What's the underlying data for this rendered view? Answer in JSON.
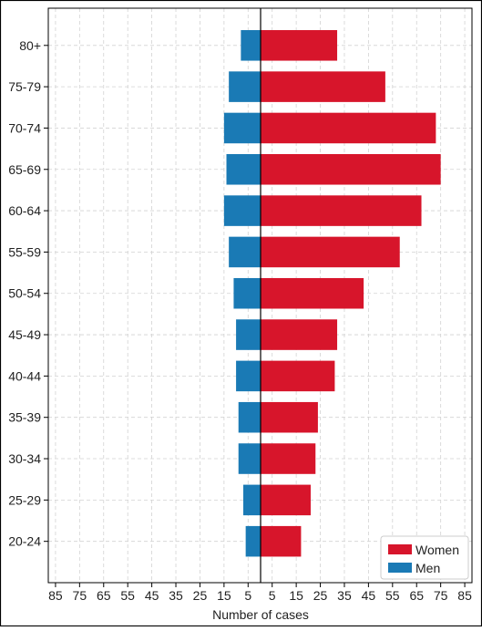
{
  "chart_data": {
    "type": "bar",
    "orientation": "horizontal",
    "title": "",
    "xlabel": "Number of cases",
    "ylabel": "",
    "categories": [
      "20-24",
      "25-29",
      "30-34",
      "35-39",
      "40-44",
      "45-49",
      "50-54",
      "55-59",
      "60-64",
      "65-69",
      "70-74",
      "75-79",
      "80+"
    ],
    "x_tick_labels": [
      "85",
      "75",
      "65",
      "55",
      "45",
      "35",
      "25",
      "15",
      "5",
      "5",
      "15",
      "25",
      "35",
      "45",
      "55",
      "65",
      "75",
      "85"
    ],
    "xlim": [
      -88,
      88
    ],
    "grid": true,
    "legend_position": "bottom-right",
    "series": [
      {
        "name": "Women",
        "color": "#d7152b",
        "values": [
          17,
          21,
          23,
          24,
          31,
          32,
          43,
          58,
          67,
          75,
          73,
          52,
          32
        ]
      },
      {
        "name": "Men",
        "color": "#1a7ab5",
        "values": [
          6,
          7,
          9,
          9,
          10,
          10,
          11,
          13,
          15,
          14,
          15,
          13,
          8
        ]
      }
    ]
  }
}
